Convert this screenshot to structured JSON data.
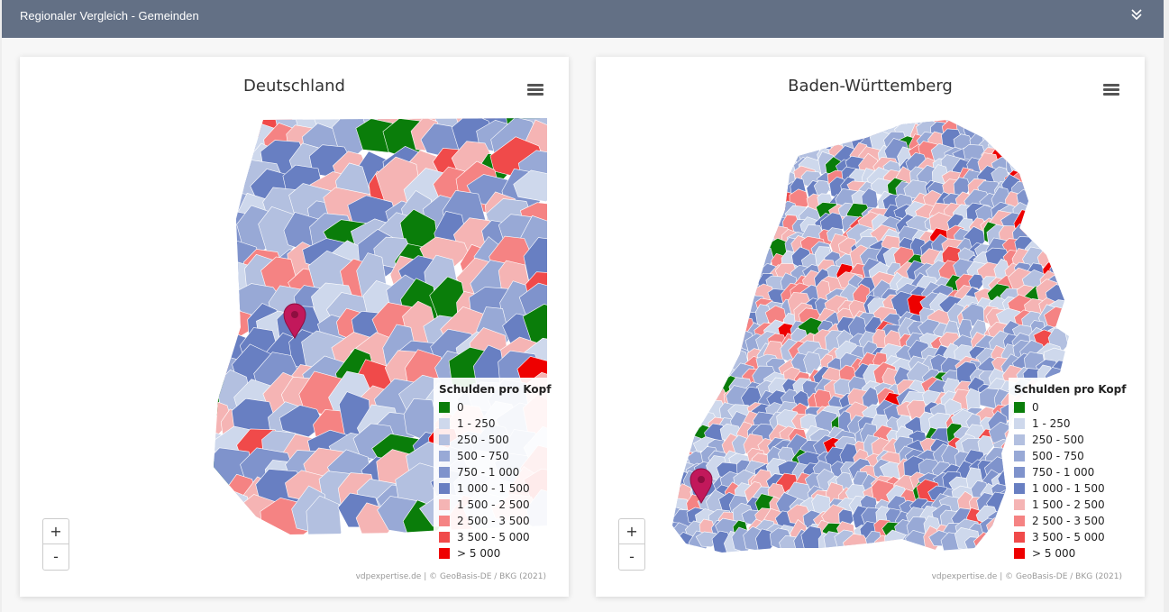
{
  "header": {
    "title": "Regionaler Vergleich - Gemeinden"
  },
  "maps": [
    {
      "title": "Deutschland",
      "credits": "vdpexpertise.de | © GeoBasis-DE / BKG (2021)"
    },
    {
      "title": "Baden-Württemberg",
      "credits": "vdpexpertise.de | © GeoBasis-DE / BKG (2021)"
    }
  ],
  "zoom": {
    "in_label": "+",
    "out_label": "-"
  },
  "legend": {
    "title": "Schulden pro Kopf",
    "items": [
      {
        "label": "0",
        "color": "#0a7d0a"
      },
      {
        "label": "1 - 250",
        "color": "#ced8ec"
      },
      {
        "label": "250 - 500",
        "color": "#b3c0e0"
      },
      {
        "label": "500 - 750",
        "color": "#98a9d6"
      },
      {
        "label": "750 - 1 000",
        "color": "#7f93cc"
      },
      {
        "label": "1 000 - 1 500",
        "color": "#687fc2"
      },
      {
        "label": "1 500 - 2 500",
        "color": "#f5b4b4"
      },
      {
        "label": "2 500 - 3 500",
        "color": "#f58383"
      },
      {
        "label": "3 500 - 5 000",
        "color": "#f04a4a"
      },
      {
        "label": "> 5 000",
        "color": "#ee0000"
      }
    ]
  },
  "colors": {
    "header_bg": "#637085",
    "marker": "#c2185b"
  }
}
